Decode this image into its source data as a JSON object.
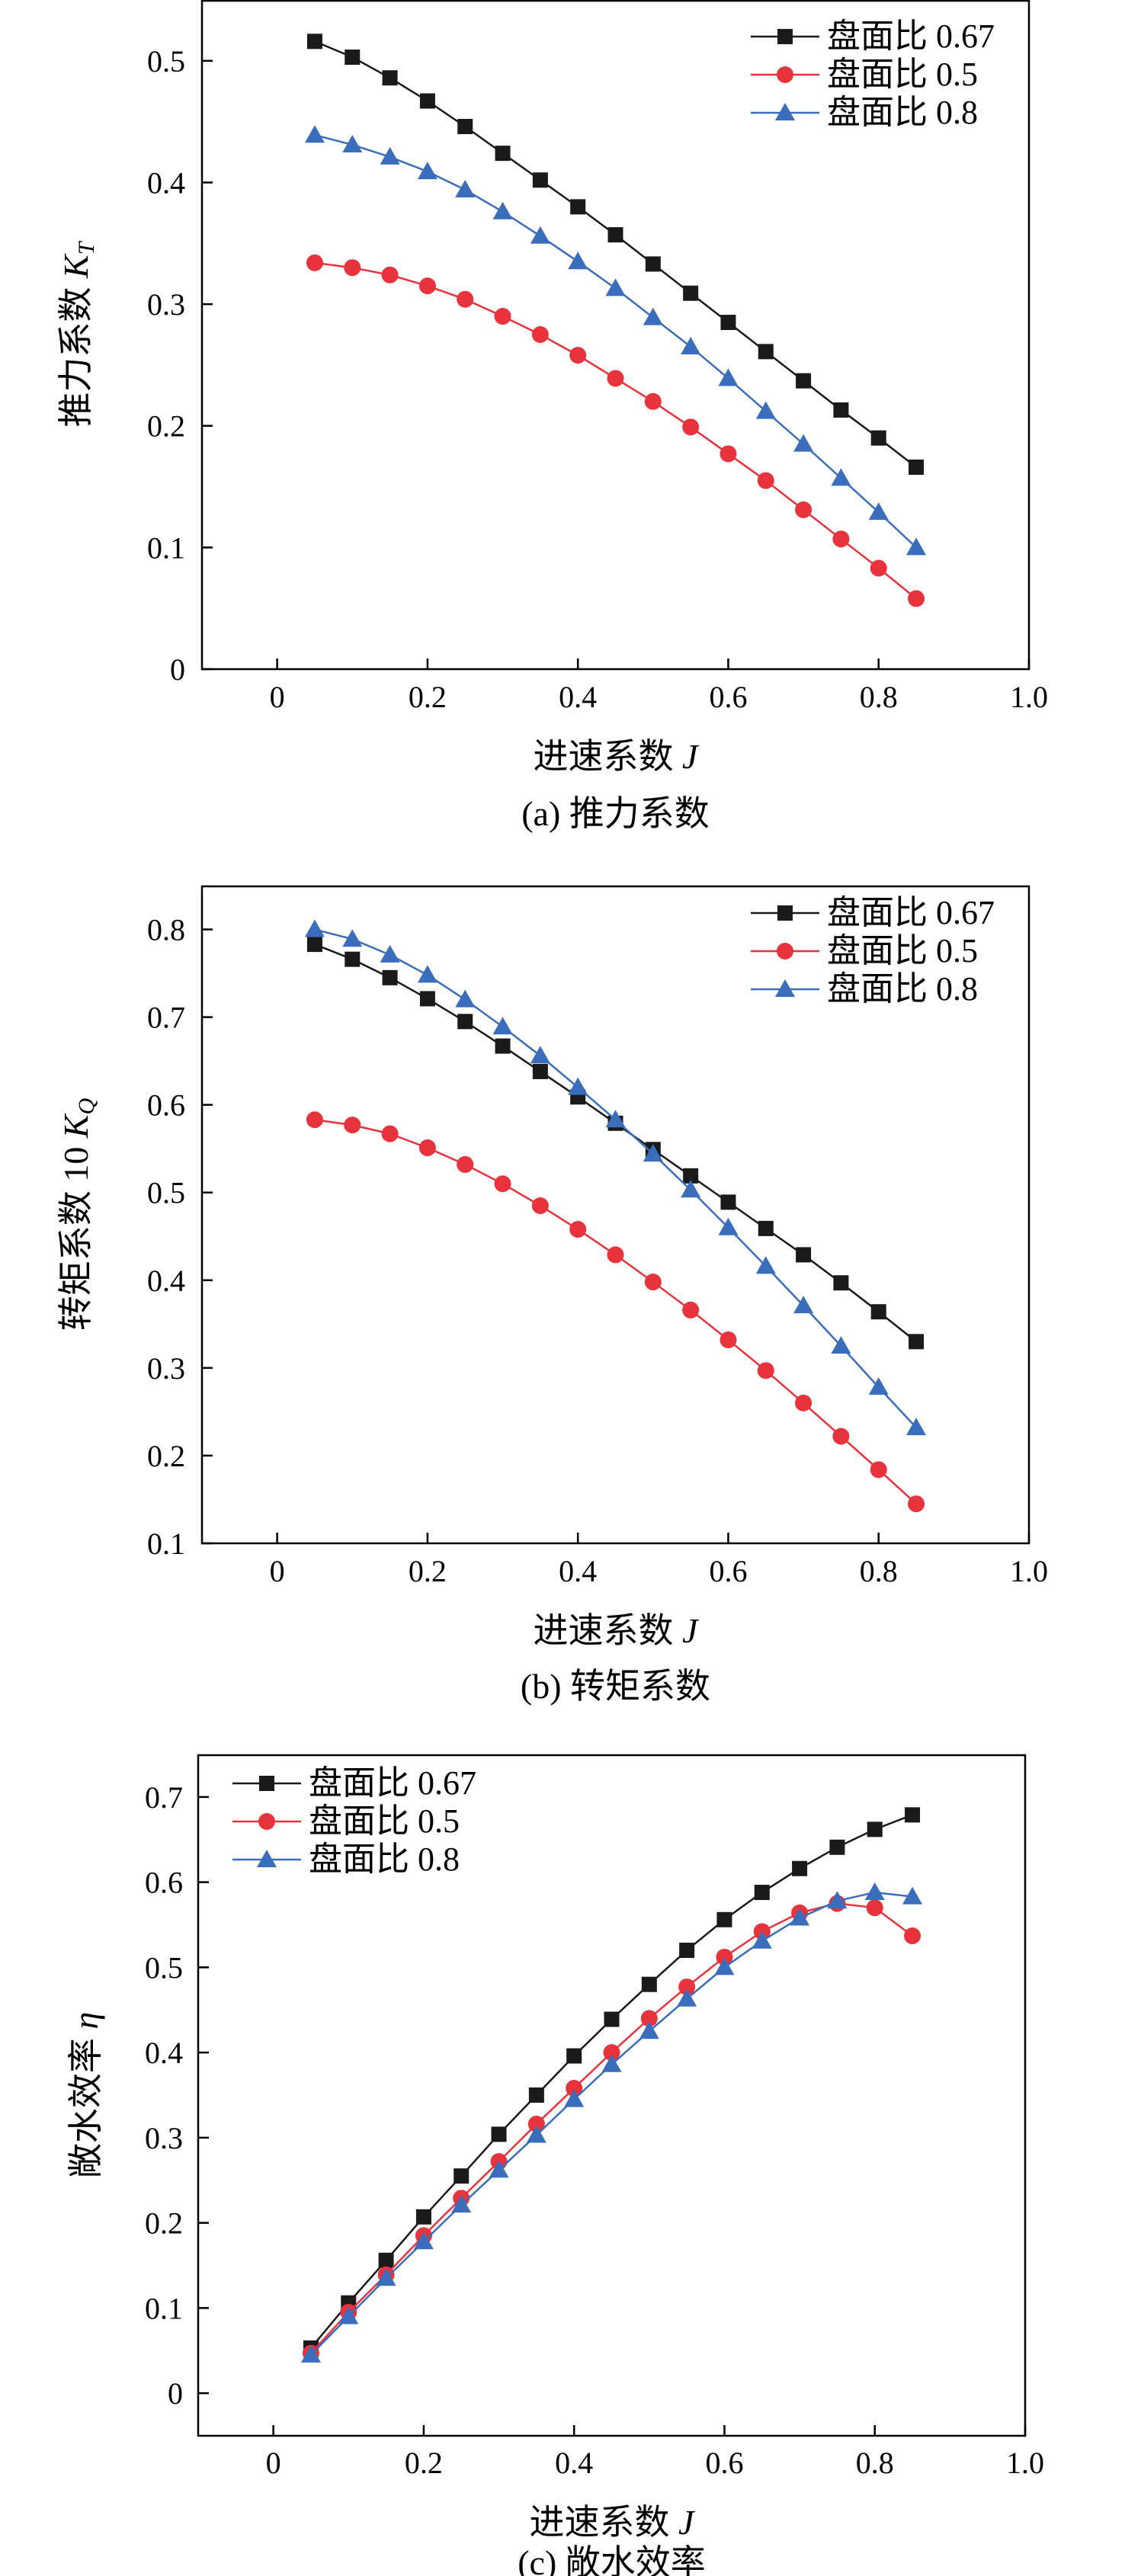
{
  "chart_data": [
    {
      "type": "line",
      "caption": "(a) 推力系数",
      "xlabel": "进速系数",
      "xlabel_var": "J",
      "ylabel": "推力系数",
      "ylabel_var": "K",
      "ylabel_sub": "T",
      "xlim": [
        -0.1,
        1.0
      ],
      "ylim": [
        0,
        0.55
      ],
      "xticks": [
        0,
        0.2,
        0.4,
        0.6,
        0.8,
        1.0
      ],
      "xtick_labels": [
        "0",
        "0.2",
        "0.4",
        "0.6",
        "0.8",
        "1.0"
      ],
      "yticks": [
        0,
        0.1,
        0.2,
        0.3,
        0.4,
        0.5
      ],
      "ytick_labels": [
        "0",
        "0.1",
        "0.2",
        "0.3",
        "0.4",
        "0.5"
      ],
      "legend_position": "top-right",
      "x": [
        0.05,
        0.1,
        0.15,
        0.2,
        0.25,
        0.3,
        0.35,
        0.4,
        0.45,
        0.5,
        0.55,
        0.6,
        0.65,
        0.7,
        0.75,
        0.8,
        0.85
      ],
      "series": [
        {
          "name": "盘面比 0.67",
          "color": "#1a1a1a",
          "marker": "square",
          "values": [
            0.516,
            0.503,
            0.486,
            0.467,
            0.446,
            0.424,
            0.402,
            0.38,
            0.357,
            0.333,
            0.309,
            0.285,
            0.261,
            0.237,
            0.213,
            0.19,
            0.166
          ]
        },
        {
          "name": "盘面比 0.5",
          "color": "#e8323c",
          "marker": "circle",
          "values": [
            0.334,
            0.33,
            0.324,
            0.315,
            0.304,
            0.29,
            0.275,
            0.258,
            0.239,
            0.22,
            0.199,
            0.177,
            0.155,
            0.131,
            0.107,
            0.083,
            0.058
          ]
        },
        {
          "name": "盘面比 0.8",
          "color": "#3a6ebd",
          "marker": "triangle",
          "values": [
            0.439,
            0.431,
            0.421,
            0.409,
            0.394,
            0.376,
            0.356,
            0.335,
            0.313,
            0.289,
            0.265,
            0.239,
            0.212,
            0.185,
            0.157,
            0.129,
            0.1
          ]
        }
      ]
    },
    {
      "type": "line",
      "caption": "(b) 转矩系数",
      "xlabel": "进速系数",
      "xlabel_var": "J",
      "ylabel": "转矩系数 10",
      "ylabel_var": "K",
      "ylabel_sub": "Q",
      "xlim": [
        -0.1,
        1.0
      ],
      "ylim": [
        0.1,
        0.85
      ],
      "xticks": [
        0,
        0.2,
        0.4,
        0.6,
        0.8,
        1.0
      ],
      "xtick_labels": [
        "0",
        "0.2",
        "0.4",
        "0.6",
        "0.8",
        "1.0"
      ],
      "yticks": [
        0.1,
        0.2,
        0.3,
        0.4,
        0.5,
        0.6,
        0.7,
        0.8
      ],
      "ytick_labels": [
        "0.1",
        "0.2",
        "0.3",
        "0.4",
        "0.5",
        "0.6",
        "0.7",
        "0.8"
      ],
      "legend_position": "top-right",
      "x": [
        0.05,
        0.1,
        0.15,
        0.2,
        0.25,
        0.3,
        0.35,
        0.4,
        0.45,
        0.5,
        0.55,
        0.6,
        0.65,
        0.7,
        0.75,
        0.8,
        0.85
      ],
      "series": [
        {
          "name": "盘面比 0.67",
          "color": "#1a1a1a",
          "marker": "square",
          "values": [
            0.783,
            0.766,
            0.745,
            0.721,
            0.695,
            0.667,
            0.638,
            0.609,
            0.579,
            0.549,
            0.519,
            0.489,
            0.459,
            0.429,
            0.397,
            0.364,
            0.33
          ]
        },
        {
          "name": "盘面比 0.5",
          "color": "#e8323c",
          "marker": "circle",
          "values": [
            0.583,
            0.577,
            0.567,
            0.551,
            0.532,
            0.51,
            0.485,
            0.458,
            0.429,
            0.398,
            0.366,
            0.332,
            0.297,
            0.26,
            0.222,
            0.184,
            0.145
          ]
        },
        {
          "name": "盘面比 0.8",
          "color": "#3a6ebd",
          "marker": "triangle",
          "values": [
            0.8,
            0.789,
            0.771,
            0.748,
            0.72,
            0.689,
            0.656,
            0.62,
            0.583,
            0.544,
            0.503,
            0.46,
            0.416,
            0.371,
            0.325,
            0.278,
            0.232
          ]
        }
      ]
    },
    {
      "type": "line",
      "caption": "(c) 敞水效率",
      "xlabel": "进速系数",
      "xlabel_var": "J",
      "ylabel": "敞水效率",
      "ylabel_var": "η",
      "ylabel_sub": "",
      "xlim": [
        -0.1,
        1.0
      ],
      "ylim": [
        -0.05,
        0.75
      ],
      "xticks": [
        0,
        0.2,
        0.4,
        0.6,
        0.8,
        1.0
      ],
      "xtick_labels": [
        "0",
        "0.2",
        "0.4",
        "0.6",
        "0.8",
        "1.0"
      ],
      "yticks": [
        0,
        0.1,
        0.2,
        0.3,
        0.4,
        0.5,
        0.6,
        0.7
      ],
      "ytick_labels": [
        "0",
        "0.1",
        "0.2",
        "0.3",
        "0.4",
        "0.5",
        "0.6",
        "0.7"
      ],
      "legend_position": "top-left",
      "x": [
        0.05,
        0.1,
        0.15,
        0.2,
        0.25,
        0.3,
        0.35,
        0.4,
        0.45,
        0.5,
        0.55,
        0.6,
        0.65,
        0.7,
        0.75,
        0.8,
        0.85
      ],
      "series": [
        {
          "name": "盘面比 0.67",
          "color": "#1a1a1a",
          "marker": "square",
          "values": [
            0.053,
            0.106,
            0.156,
            0.207,
            0.255,
            0.304,
            0.35,
            0.396,
            0.439,
            0.48,
            0.52,
            0.556,
            0.588,
            0.616,
            0.641,
            0.662,
            0.679
          ]
        },
        {
          "name": "盘面比 0.5",
          "color": "#e8323c",
          "marker": "circle",
          "values": [
            0.047,
            0.095,
            0.139,
            0.185,
            0.229,
            0.272,
            0.316,
            0.358,
            0.4,
            0.44,
            0.477,
            0.512,
            0.542,
            0.564,
            0.575,
            0.57,
            0.537
          ]
        },
        {
          "name": "盘面比 0.8",
          "color": "#3a6ebd",
          "marker": "triangle",
          "values": [
            0.045,
            0.09,
            0.135,
            0.178,
            0.221,
            0.262,
            0.303,
            0.345,
            0.386,
            0.425,
            0.463,
            0.5,
            0.531,
            0.558,
            0.578,
            0.588,
            0.583
          ]
        }
      ]
    }
  ]
}
